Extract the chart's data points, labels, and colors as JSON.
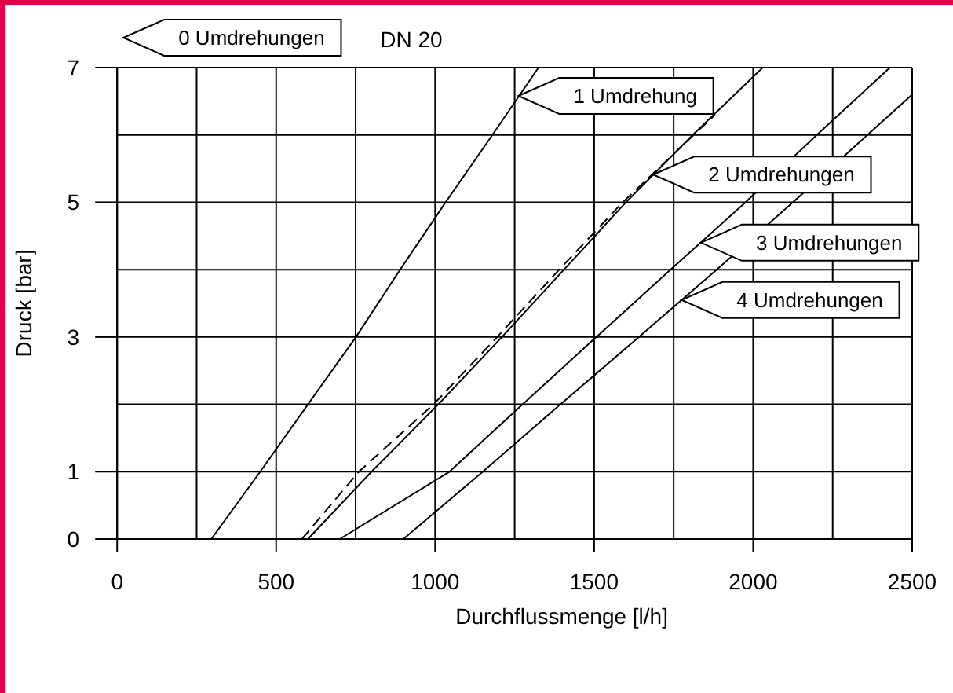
{
  "chart_data": {
    "type": "line",
    "title": "DN 20",
    "xlabel": "Durchflussmenge [l/h]",
    "ylabel": "Druck [bar]",
    "xlim": [
      0,
      2500
    ],
    "xticks": [
      0,
      {
        "value": 250,
        "label": null
      },
      500,
      {
        "value": 750,
        "label": null
      },
      1000,
      {
        "value": 1250,
        "label": null
      },
      1500,
      {
        "value": 1750,
        "label": null
      },
      2000,
      {
        "value": 2250,
        "label": null
      },
      2500
    ],
    "ylim": [
      0,
      7
    ],
    "yticks": [
      0,
      1,
      {
        "value": 2,
        "label": null
      },
      3,
      {
        "value": 4,
        "label": null
      },
      5,
      {
        "value": 6,
        "label": null
      },
      7
    ],
    "grid": true,
    "series": [
      {
        "color": "#000000",
        "line_style": "solid",
        "x": [
          296,
          450,
          600,
          751,
          890,
          1033,
          1180,
          1325
        ],
        "values": [
          0,
          1,
          2,
          3,
          4,
          5,
          6,
          7
        ]
      },
      {
        "color": "#000000",
        "line_style": "dashed",
        "x": [
          581,
          760,
          995,
          1195,
          1390,
          1590,
          1880
        ],
        "values": [
          0,
          1,
          2,
          3,
          4,
          5,
          6.3
        ]
      },
      {
        "color": "#000000",
        "line_style": "solid",
        "x": [
          600,
          800,
          1010,
          1210,
          1405,
          1600,
          1810,
          2030
        ],
        "values": [
          0,
          1,
          2,
          3,
          4,
          5,
          6,
          7
        ]
      },
      {
        "color": "#000000",
        "line_style": "solid",
        "x": [
          700,
          1045,
          1275,
          1507,
          1740,
          1976,
          2200,
          2430
        ],
        "values": [
          0,
          1,
          2,
          3,
          4,
          5,
          6,
          7
        ]
      },
      {
        "color": "#000000",
        "line_style": "solid",
        "x": [
          900,
          1150,
          1394,
          1641,
          1885,
          2125,
          2500
        ],
        "values": [
          0,
          1,
          2,
          3,
          4,
          5,
          6.6
        ]
      }
    ],
    "annotations": [
      "0 Umdrehungen",
      {
        "text": "1 Umdrehung",
        "x": 1262,
        "y": 6.58
      },
      {
        "text": "2 Umdrehungen",
        "x": 1686,
        "y": 5.41
      },
      {
        "text": "3 Umdrehungen",
        "x": 1836,
        "y": 4.4
      },
      {
        "text": "4 Umdrehungen",
        "x": 1775,
        "y": 3.55
      }
    ]
  }
}
